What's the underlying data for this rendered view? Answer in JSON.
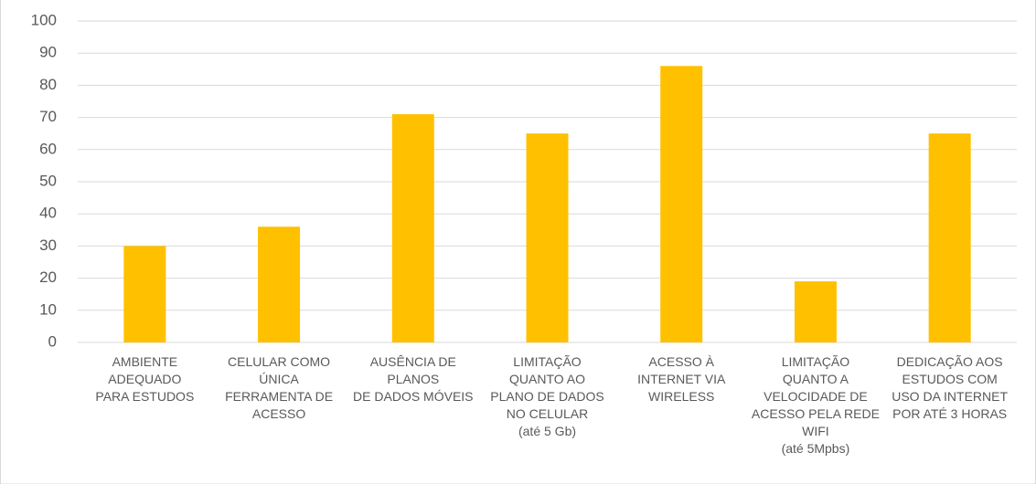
{
  "chart_data": {
    "type": "bar",
    "categories": [
      [
        "AMBIENTE",
        "ADEQUADO",
        "PARA ESTUDOS"
      ],
      [
        "CELULAR COMO",
        "ÚNICA",
        "FERRAMENTA DE",
        "ACESSO"
      ],
      [
        "AUSÊNCIA DE",
        "PLANOS",
        "DE DADOS MÓVEIS"
      ],
      [
        "LIMITAÇÃO",
        "QUANTO AO",
        "PLANO DE DADOS",
        "NO CELULAR",
        "(até 5 Gb)"
      ],
      [
        "ACESSO À",
        "INTERNET VIA",
        "WIRELESS"
      ],
      [
        "LIMITAÇÃO",
        "QUANTO A",
        "VELOCIDADE DE",
        "ACESSO PELA REDE",
        "WIFI",
        "(até 5Mpbs)"
      ],
      [
        "DEDICAÇÃO AOS",
        "ESTUDOS COM",
        "USO DA INTERNET",
        "POR ATÉ 3 HORAS"
      ]
    ],
    "values": [
      30,
      36,
      71,
      65,
      86,
      19,
      65
    ],
    "color": "#ffc000",
    "ylim": [
      0,
      100
    ],
    "yticks": [
      0,
      10,
      20,
      30,
      40,
      50,
      60,
      70,
      80,
      90,
      100
    ],
    "grid": true
  }
}
